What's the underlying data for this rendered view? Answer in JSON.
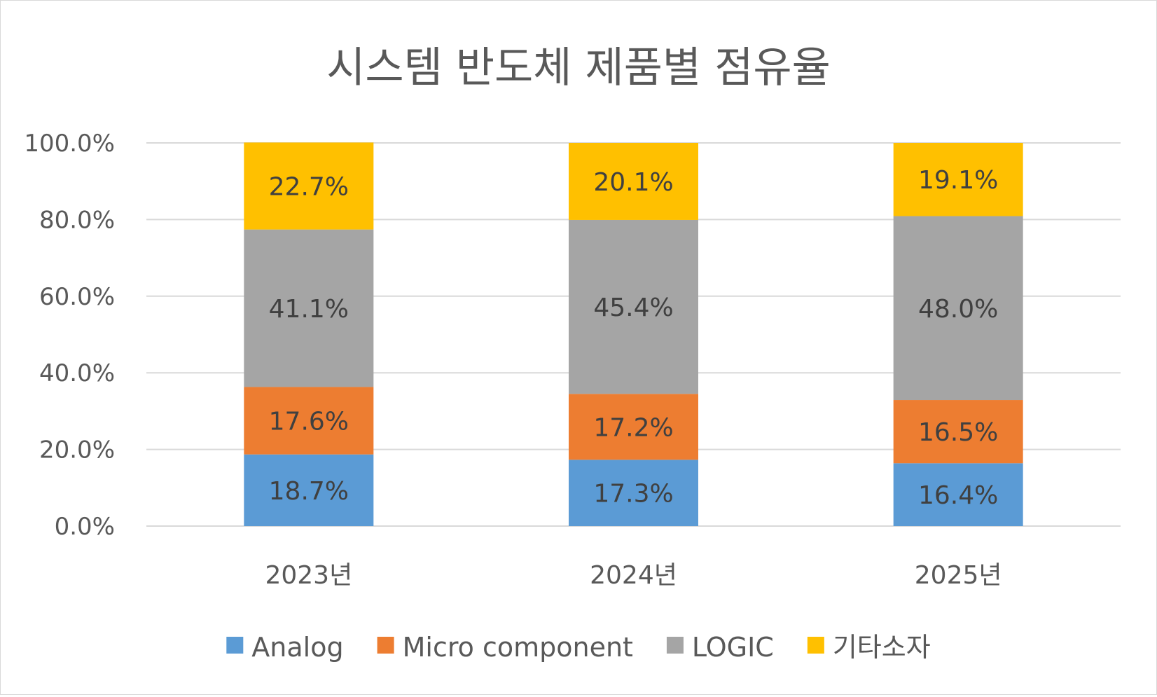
{
  "chart_data": {
    "type": "bar",
    "stacked": true,
    "title": "시스템 반도체 제품별 점유율",
    "categories": [
      "2023년",
      "2024년",
      "2025년"
    ],
    "ylim": [
      0,
      100
    ],
    "yticks": [
      "0.0%",
      "20.0%",
      "40.0%",
      "60.0%",
      "80.0%",
      "100.0%"
    ],
    "grid": true,
    "legend_position": "bottom",
    "series": [
      {
        "name": "Analog",
        "color": "#5b9bd5",
        "values": [
          18.7,
          17.3,
          16.4
        ],
        "labels": [
          "18.7%",
          "17.3%",
          "16.4%"
        ]
      },
      {
        "name": "Micro component",
        "color": "#ed7d31",
        "values": [
          17.6,
          17.2,
          16.5
        ],
        "labels": [
          "17.6%",
          "17.2%",
          "16.5%"
        ]
      },
      {
        "name": "LOGIC",
        "color": "#a5a5a5",
        "values": [
          41.1,
          45.4,
          48.0
        ],
        "labels": [
          "41.1%",
          "45.4%",
          "48.0%"
        ]
      },
      {
        "name": "기타소자",
        "color": "#ffc000",
        "values": [
          22.7,
          20.1,
          19.1
        ],
        "labels": [
          "22.7%",
          "20.1%",
          "19.1%"
        ]
      }
    ]
  }
}
